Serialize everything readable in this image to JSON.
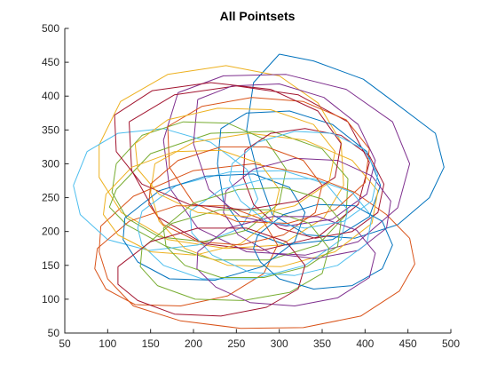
{
  "chart_data": {
    "type": "line",
    "title": "All Pointsets",
    "xlabel": "",
    "ylabel": "",
    "xlim": [
      50,
      500
    ],
    "ylim": [
      50,
      500
    ],
    "xticks": [
      "50",
      "100",
      "150",
      "200",
      "250",
      "300",
      "350",
      "400",
      "450",
      "500"
    ],
    "yticks": [
      "50",
      "100",
      "150",
      "200",
      "250",
      "300",
      "350",
      "400",
      "450",
      "500"
    ],
    "grid": false,
    "legend": "none",
    "colors": [
      "#0072bd",
      "#d95319",
      "#edb120",
      "#7e2f8e",
      "#77ac30",
      "#4dbeee",
      "#a2142f"
    ],
    "series": [
      {
        "x": [
          300,
          340,
          398,
          435,
          482,
          492,
          475,
          438,
          388,
          332,
          292,
          275,
          262,
          270,
          300
        ],
        "y": [
          462,
          452,
          425,
          390,
          345,
          295,
          250,
          210,
          190,
          195,
          225,
          285,
          350,
          420,
          462
        ]
      },
      {
        "x": [
          92,
          130,
          200,
          270,
          332,
          388,
          425,
          452,
          458,
          440,
          395,
          328,
          255,
          185,
          130,
          100,
          90,
          92
        ],
        "y": [
          208,
          252,
          290,
          300,
          285,
          258,
          225,
          190,
          152,
          112,
          75,
          58,
          57,
          68,
          90,
          130,
          170,
          208
        ]
      },
      {
        "x": [
          90,
          115,
          170,
          238,
          300,
          345,
          372,
          375,
          352,
          302,
          238,
          170,
          116,
          90,
          90
        ],
        "y": [
          328,
          392,
          432,
          445,
          430,
          390,
          332,
          268,
          220,
          180,
          175,
          188,
          228,
          280,
          328
        ]
      },
      {
        "x": [
          182,
          235,
          308,
          378,
          432,
          452,
          438,
          392,
          330,
          262,
          205,
          172,
          165,
          182
        ],
        "y": [
          405,
          430,
          432,
          410,
          362,
          300,
          235,
          185,
          165,
          170,
          205,
          265,
          335,
          405
        ]
      },
      {
        "x": [
          110,
          150,
          220,
          292,
          350,
          380,
          378,
          345,
          288,
          225,
          168,
          122,
          102,
          110
        ],
        "y": [
          262,
          315,
          345,
          348,
          322,
          278,
          225,
          180,
          158,
          158,
          178,
          210,
          236,
          262
        ]
      },
      {
        "x": [
          60,
          76,
          112,
          165,
          220,
          262,
          275,
          255,
          205,
          148,
          100,
          68,
          60
        ],
        "y": [
          268,
          318,
          345,
          352,
          332,
          292,
          248,
          205,
          180,
          172,
          188,
          225,
          268
        ]
      },
      {
        "x": [
          125,
          178,
          250,
          322,
          380,
          405,
          392,
          345,
          280,
          212,
          158,
          128,
          125
        ],
        "y": [
          362,
          402,
          415,
          402,
          362,
          302,
          240,
          192,
          172,
          182,
          222,
          290,
          362
        ]
      },
      {
        "x": [
          232,
          262,
          312,
          362,
          402,
          418,
          405,
          362,
          308,
          260,
          235,
          228,
          232
        ],
        "y": [
          352,
          375,
          378,
          358,
          318,
          268,
          222,
          188,
          180,
          202,
          245,
          300,
          352
        ]
      },
      {
        "x": [
          88,
          125,
          180,
          238,
          280,
          298,
          282,
          240,
          185,
          132,
          98,
          85,
          88
        ],
        "y": [
          175,
          215,
          238,
          238,
          218,
          180,
          138,
          105,
          90,
          92,
          115,
          145,
          175
        ]
      },
      {
        "x": [
          155,
          200,
          265,
          330,
          385,
          415,
          408,
          365,
          302,
          240,
          190,
          160,
          150,
          155
        ],
        "y": [
          300,
          332,
          345,
          335,
          305,
          260,
          212,
          170,
          148,
          150,
          175,
          215,
          258,
          300
        ]
      },
      {
        "x": [
          205,
          245,
          300,
          352,
          392,
          412,
          402,
          362,
          308,
          255,
          218,
          200,
          205
        ],
        "y": [
          395,
          415,
          418,
          398,
          358,
          305,
          255,
          218,
          208,
          222,
          262,
          330,
          395
        ]
      },
      {
        "x": [
          110,
          140,
          188,
          240,
          285,
          308,
          300,
          262,
          212,
          160,
          122,
          105,
          110
        ],
        "y": [
          300,
          342,
          362,
          360,
          335,
          292,
          242,
          202,
          185,
          192,
          220,
          258,
          300
        ]
      },
      {
        "x": [
          140,
          180,
          242,
          305,
          355,
          380,
          372,
          330,
          270,
          210,
          165,
          140,
          135,
          140
        ],
        "y": [
          230,
          268,
          288,
          290,
          270,
          232,
          188,
          150,
          130,
          130,
          150,
          180,
          205,
          230
        ]
      },
      {
        "x": [
          260,
          290,
          330,
          372,
          405,
          422,
          415,
          385,
          342,
          300,
          270,
          258,
          260
        ],
        "y": [
          320,
          345,
          352,
          342,
          312,
          270,
          228,
          200,
          190,
          205,
          240,
          280,
          320
        ]
      },
      {
        "x": [
          120,
          160,
          215,
          270,
          312,
          330,
          318,
          280,
          225,
          172,
          135,
          118,
          120
        ],
        "y": [
          220,
          260,
          282,
          285,
          265,
          228,
          185,
          148,
          128,
          130,
          155,
          188,
          220
        ]
      },
      {
        "x": [
          170,
          210,
          268,
          328,
          378,
          405,
          400,
          365,
          310,
          250,
          200,
          172,
          170
        ],
        "y": [
          355,
          385,
          398,
          392,
          365,
          322,
          272,
          232,
          212,
          215,
          242,
          295,
          355
        ]
      },
      {
        "x": [
          98,
          128,
          178,
          232,
          278,
          300,
          292,
          255,
          202,
          150,
          112,
          95,
          98
        ],
        "y": [
          255,
          295,
          318,
          320,
          300,
          262,
          218,
          182,
          165,
          170,
          195,
          225,
          255
        ]
      },
      {
        "x": [
          238,
          270,
          318,
          368,
          408,
          430,
          425,
          392,
          342,
          290,
          252,
          235,
          238
        ],
        "y": [
          260,
          292,
          308,
          305,
          282,
          245,
          205,
          172,
          160,
          168,
          195,
          228,
          260
        ]
      },
      {
        "x": [
          140,
          175,
          230,
          288,
          335,
          358,
          350,
          312,
          258,
          202,
          158,
          138,
          140
        ],
        "y": [
          175,
          212,
          232,
          232,
          212,
          175,
          138,
          110,
          98,
          100,
          120,
          148,
          175
        ]
      },
      {
        "x": [
          196,
          232,
          285,
          340,
          385,
          408,
          402,
          368,
          318,
          265,
          222,
          198,
          196
        ],
        "y": [
          230,
          262,
          278,
          278,
          258,
          222,
          182,
          150,
          135,
          140,
          165,
          198,
          230
        ]
      },
      {
        "x": [
          108,
          152,
          220,
          290,
          345,
          372,
          365,
          322,
          260,
          195,
          140,
          110,
          108
        ],
        "y": [
          372,
          408,
          420,
          410,
          378,
          330,
          280,
          245,
          232,
          240,
          270,
          318,
          372
        ]
      },
      {
        "x": [
          275,
          305,
          345,
          388,
          420,
          432,
          420,
          385,
          340,
          300,
          278,
          270,
          275
        ],
        "y": [
          195,
          225,
          240,
          238,
          215,
          180,
          145,
          120,
          115,
          130,
          155,
          175,
          195
        ]
      },
      {
        "x": [
          150,
          182,
          232,
          285,
          328,
          350,
          342,
          305,
          255,
          205,
          165,
          148,
          150
        ],
        "y": [
          270,
          305,
          325,
          325,
          305,
          268,
          228,
          195,
          180,
          185,
          210,
          240,
          270
        ]
      },
      {
        "x": [
          132,
          170,
          228,
          290,
          340,
          365,
          358,
          318,
          262,
          205,
          160,
          135,
          132
        ],
        "y": [
          330,
          365,
          382,
          380,
          358,
          318,
          272,
          238,
          222,
          228,
          255,
          292,
          330
        ]
      },
      {
        "x": [
          205,
          240,
          292,
          345,
          390,
          412,
          405,
          368,
          318,
          266,
          226,
          204,
          205
        ],
        "y": [
          170,
          205,
          222,
          222,
          202,
          168,
          132,
          102,
          90,
          95,
          118,
          145,
          170
        ]
      },
      {
        "x": [
          165,
          200,
          252,
          305,
          350,
          372,
          368,
          332,
          282,
          232,
          190,
          168,
          165
        ],
        "y": [
          205,
          242,
          262,
          265,
          248,
          215,
          178,
          148,
          132,
          132,
          150,
          178,
          205
        ]
      },
      {
        "x": [
          245,
          275,
          318,
          362,
          398,
          415,
          408,
          375,
          330,
          285,
          255,
          242,
          245
        ],
        "y": [
          300,
          332,
          348,
          345,
          322,
          285,
          245,
          215,
          205,
          215,
          245,
          275,
          300
        ]
      },
      {
        "x": [
          112,
          150,
          205,
          262,
          308,
          330,
          322,
          285,
          232,
          178,
          135,
          112,
          112
        ],
        "y": [
          148,
          185,
          205,
          205,
          185,
          150,
          115,
          88,
          75,
          78,
          98,
          122,
          148
        ]
      }
    ]
  }
}
